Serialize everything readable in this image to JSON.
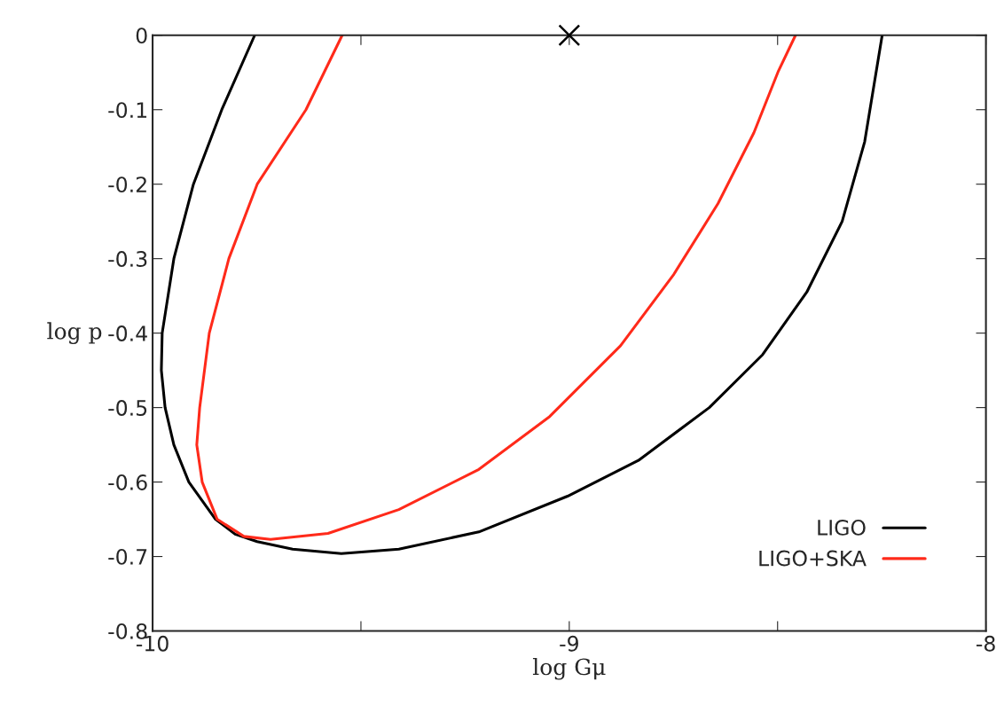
{
  "chart_data": {
    "type": "line",
    "xlabel": "log Gμ",
    "ylabel": "log p",
    "xlim": [
      -10,
      -8
    ],
    "ylim": [
      -0.8,
      0
    ],
    "xticks": [
      -10,
      {
        "value": -9.5,
        "label": null
      },
      -9,
      {
        "value": -8.5,
        "label": null
      },
      -8
    ],
    "yticks": [
      -0.8,
      -0.7,
      -0.6,
      -0.5,
      -0.4,
      -0.3,
      -0.2,
      -0.1,
      0
    ],
    "grid": false,
    "legend": "bottom right",
    "line_style": "solid",
    "marker": "none",
    "series": [
      {
        "name": "LIGO",
        "color": "#000000",
        "x": [
          -9.755,
          -9.834,
          -9.902,
          -9.949,
          -9.977,
          -9.979,
          -9.97,
          -9.949,
          -9.913,
          -9.849,
          -9.802,
          -9.749,
          -9.664,
          -9.547,
          -9.409,
          -9.217,
          -9.004,
          -8.834,
          -8.664,
          -8.536,
          -8.43,
          -8.345,
          -8.291,
          -8.249
        ],
        "values": [
          0,
          -0.1,
          -0.2,
          -0.3,
          -0.4,
          -0.45,
          -0.5,
          -0.55,
          -0.6,
          -0.65,
          -0.67,
          -0.68,
          -0.69,
          -0.696,
          -0.69,
          -0.667,
          -0.619,
          -0.571,
          -0.5,
          -0.429,
          -0.345,
          -0.25,
          -0.143,
          0
        ]
      },
      {
        "name": "LIGO+SKA",
        "color": "#ff2a1a",
        "x": [
          -9.545,
          -9.632,
          -9.749,
          -9.817,
          -9.864,
          -9.887,
          -9.894,
          -9.881,
          -9.845,
          -9.781,
          -9.717,
          -9.579,
          -9.409,
          -9.217,
          -9.047,
          -8.877,
          -8.749,
          -8.643,
          -8.557,
          -8.498,
          -8.457
        ],
        "values": [
          0,
          -0.1,
          -0.2,
          -0.3,
          -0.4,
          -0.5,
          -0.55,
          -0.6,
          -0.65,
          -0.673,
          -0.677,
          -0.669,
          -0.637,
          -0.583,
          -0.512,
          -0.417,
          -0.321,
          -0.226,
          -0.131,
          -0.048,
          0
        ]
      },
      {
        "type": "scatter",
        "marker": "cross",
        "color": "#000000",
        "x": [
          -9
        ],
        "values": [
          0
        ]
      }
    ]
  }
}
